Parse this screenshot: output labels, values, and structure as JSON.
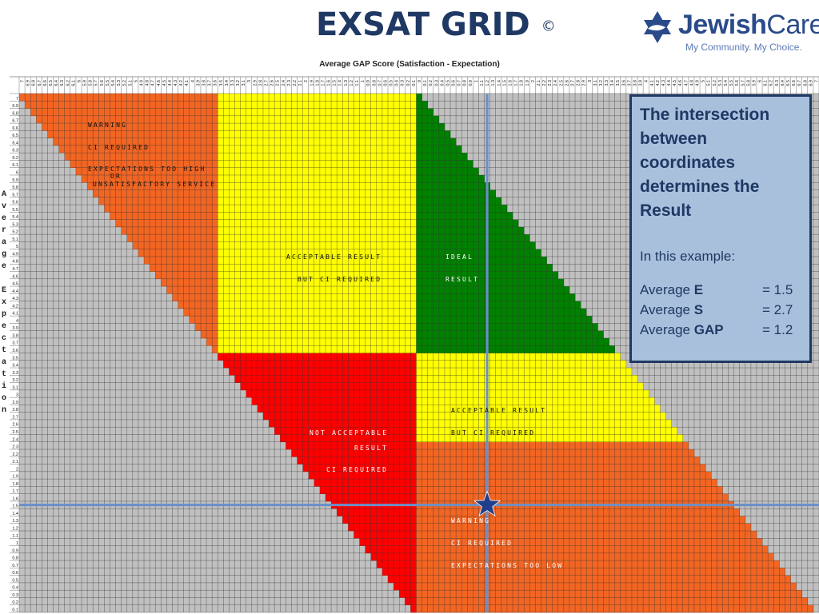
{
  "header": {
    "title": "EXSAT GRID",
    "copyright": "©",
    "logo_jewish": "Jewish",
    "logo_care": "Care",
    "logo_tagline": "My Community. My Choice."
  },
  "grid": {
    "x_axis_title": "Average GAP Score (Satisfaction - Expectation)",
    "y_axis_title": "Average Expectation",
    "scale_max": 7,
    "scale_step": 0.1,
    "colors": {
      "grey": "#c0c0c0",
      "orange": "#f26522",
      "yellow": "#ffff00",
      "green": "#008000",
      "red": "#ff0000",
      "gridline": "#333333",
      "crosshair": "#6a8fc8",
      "star": "#1f3e8c"
    }
  },
  "zones": {
    "top_left": {
      "line1": "WARNING",
      "line2": "CI REQUIRED",
      "line3": "EXPECTATIONS TOO HIGH",
      "line4": "OR",
      "line5": "UNSATISFACTORY SERVICE"
    },
    "acceptable_top": {
      "line1": "ACCEPTABLE RESULT",
      "line2": "BUT CI REQUIRED"
    },
    "ideal": {
      "line1": "IDEAL",
      "line2": "RESULT"
    },
    "not_acceptable": {
      "line1": "NOT ACCEPTABLE",
      "line2": "RESULT",
      "line3": "CI REQUIRED"
    },
    "acceptable_bottom": {
      "line1": "ACCEPTABLE RESULT",
      "line2": "BUT CI REQUIRED"
    },
    "bottom_right": {
      "line1": "WARNING",
      "line2": "CI REQUIRED",
      "line3": "EXPECTATIONS TOO LOW"
    }
  },
  "info_box": {
    "title": "The intersection between coordinates determines the Result",
    "subtitle": "In this example:",
    "rows": [
      {
        "prefix": "Average ",
        "letter": "E",
        "value": "= 1.5"
      },
      {
        "prefix": "Average ",
        "letter": "S",
        "value": "= 2.7"
      },
      {
        "prefix": "Average ",
        "letter": "GAP",
        "value": "= 1.2"
      }
    ]
  },
  "example": {
    "expectation": 1.5,
    "satisfaction": 2.7,
    "gap": 1.2
  }
}
